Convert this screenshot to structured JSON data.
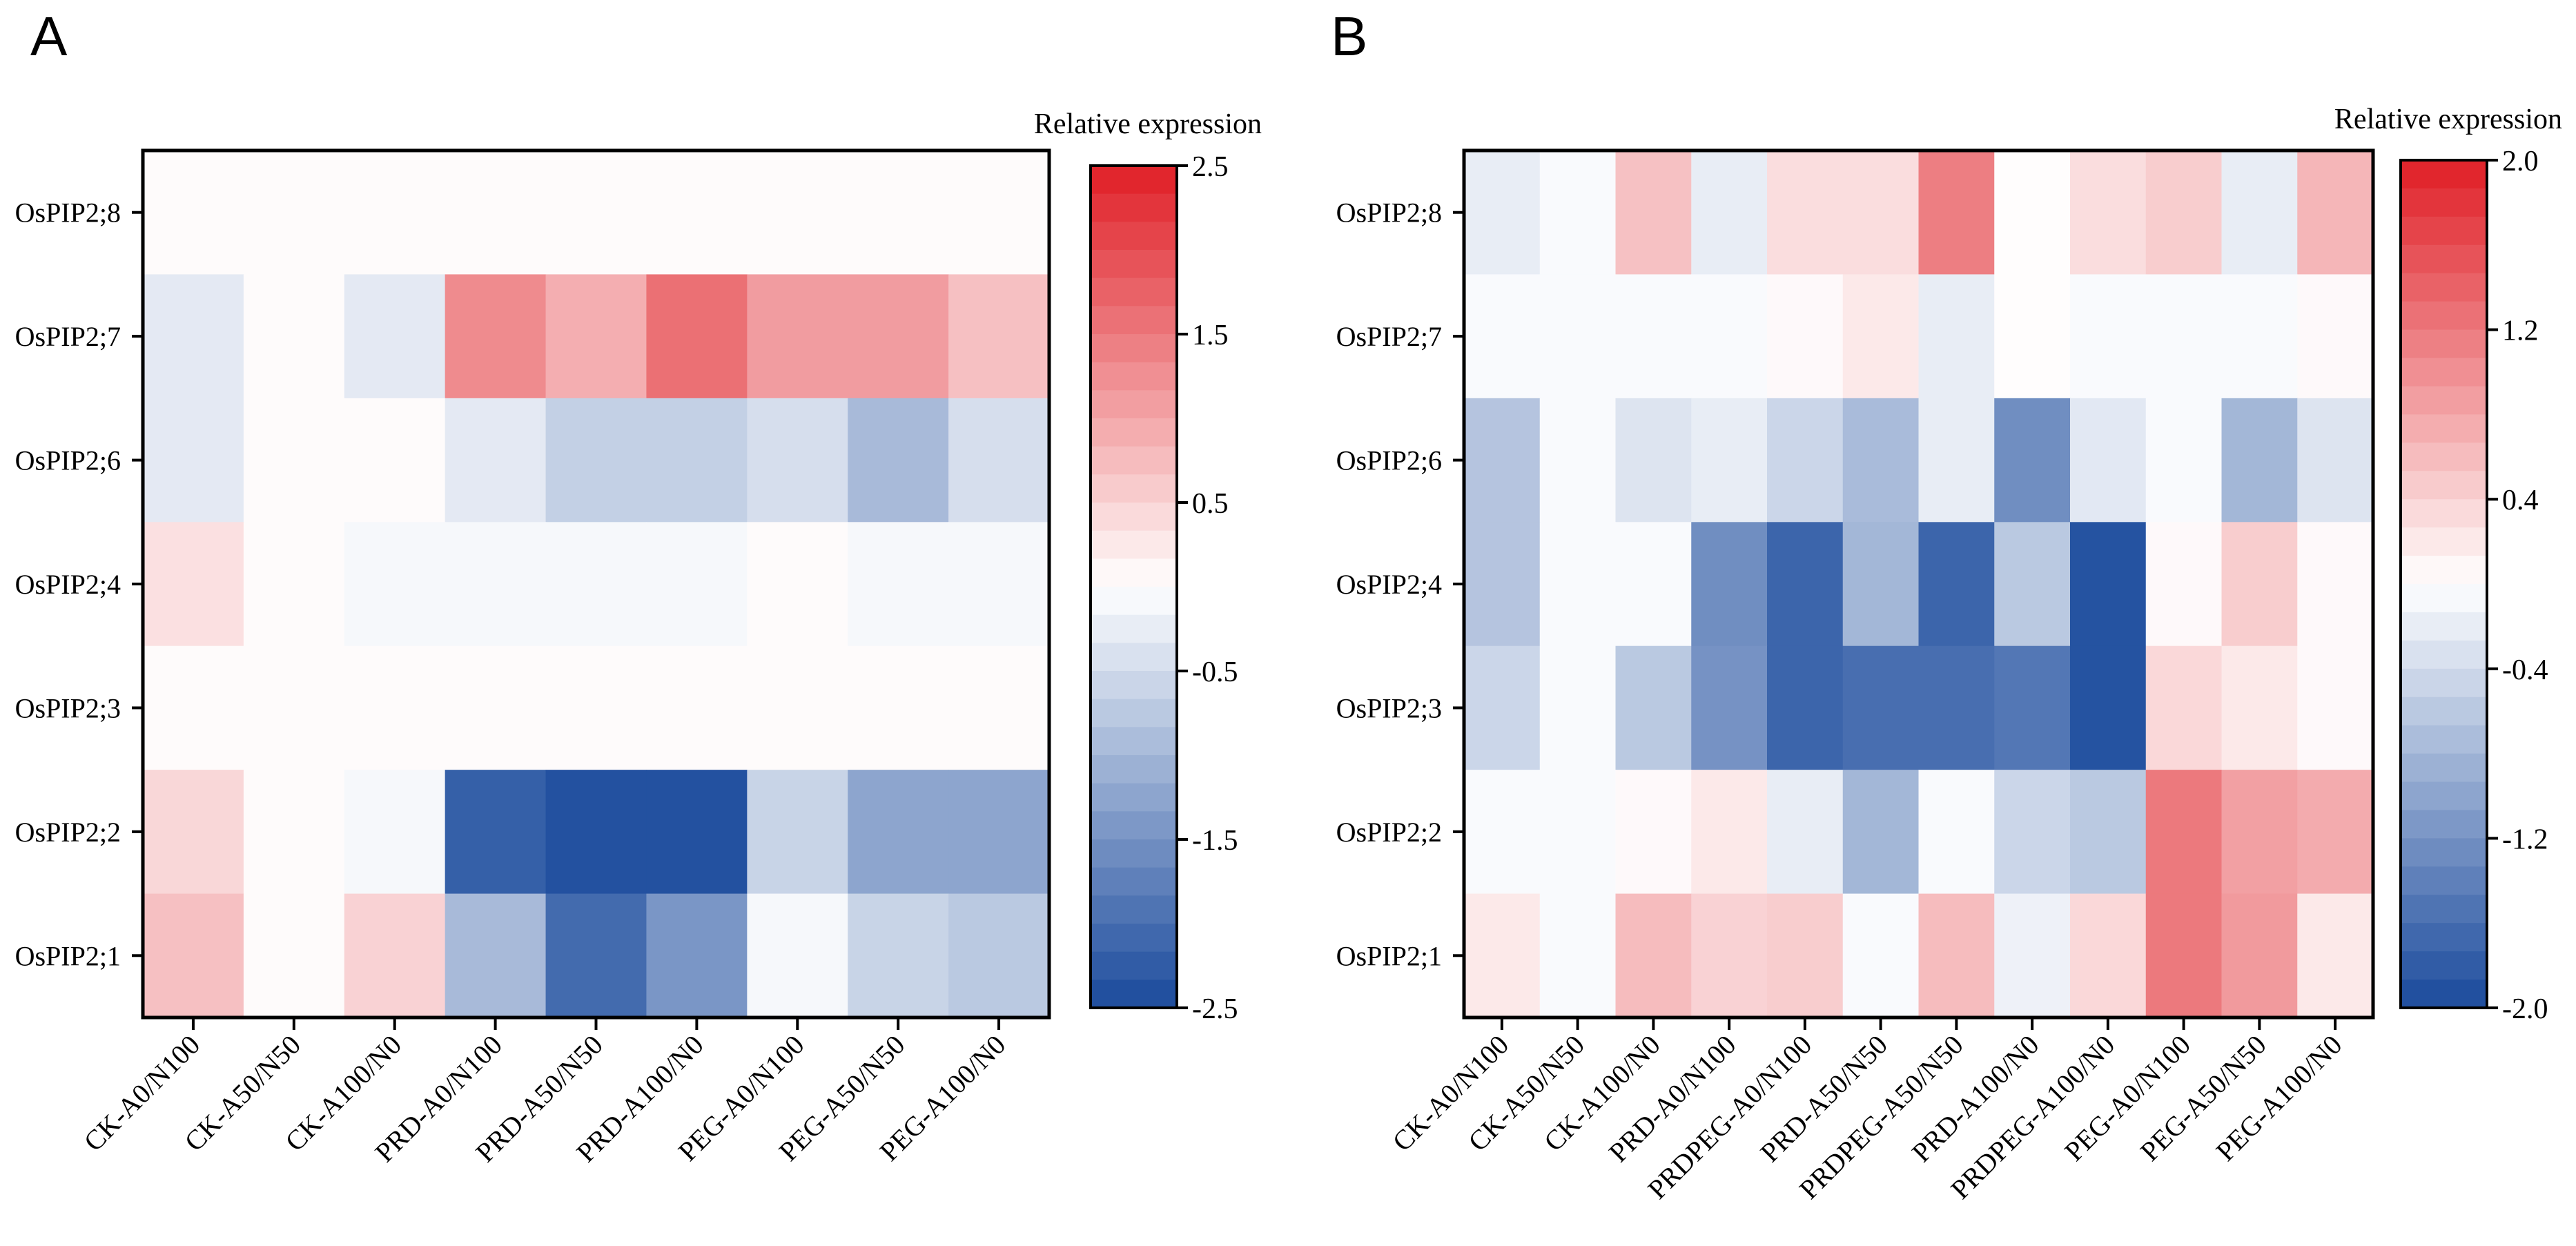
{
  "chart_data": [
    {
      "type": "heatmap",
      "panel_label": "A",
      "legend_title": "Relative expression",
      "rows": [
        "OsPIP2;8",
        "OsPIP2;7",
        "OsPIP2;6",
        "OsPIP2;4",
        "OsPIP2;3",
        "OsPIP2;2",
        "OsPIP2;1"
      ],
      "columns": [
        "CK-A0/N100",
        "CK-A50/N50",
        "CK-A100/N0",
        "PRD-A0/N100",
        "PRD-A50/N50",
        "PRD-A100/N0",
        "PEG-A0/N100",
        "PEG-A50/N50",
        "PEG-A100/N0"
      ],
      "values": [
        [
          0.05,
          0.05,
          0.05,
          0.05,
          0.05,
          0.05,
          0.05,
          0.05,
          0.05
        ],
        [
          -0.3,
          0.05,
          -0.3,
          1.3,
          0.9,
          1.6,
          1.1,
          1.1,
          0.7
        ],
        [
          -0.3,
          0.05,
          0.05,
          -0.3,
          -0.65,
          -0.65,
          -0.45,
          -0.95,
          -0.45
        ],
        [
          0.35,
          0.05,
          -0.1,
          -0.1,
          -0.1,
          -0.1,
          0.05,
          -0.1,
          -0.1
        ],
        [
          0.05,
          0.05,
          0.05,
          0.05,
          0.05,
          0.05,
          0.05,
          0.05,
          0.05
        ],
        [
          0.45,
          0.05,
          -0.1,
          -2.2,
          -2.4,
          -2.4,
          -0.6,
          -1.25,
          -1.25
        ],
        [
          0.7,
          0.05,
          0.5,
          -0.95,
          -2.05,
          -1.45,
          -0.1,
          -0.6,
          -0.75
        ]
      ],
      "color_range": [
        -2.5,
        2.5
      ],
      "color_ticks": [
        2.5,
        1.5,
        0.5,
        -0.5,
        -1.5,
        -2.5
      ],
      "color_tick_labels": [
        "2.5",
        "1.5",
        "0.5",
        "-0.5",
        "-1.5",
        "-2.5"
      ],
      "colors": {
        "low": "#1a4a9c",
        "mid": "#ffffff",
        "high": "#e01f26"
      }
    },
    {
      "type": "heatmap",
      "panel_label": "B",
      "legend_title": "Relative expression",
      "rows": [
        "OsPIP2;8",
        "OsPIP2;7",
        "OsPIP2;6",
        "OsPIP2;4",
        "OsPIP2;3",
        "OsPIP2;2",
        "OsPIP2;1"
      ],
      "columns": [
        "CK-A0/N100",
        "CK-A50/N50",
        "CK-A100/N0",
        "PRD-A0/N100",
        "PRDPEG-A0/N100",
        "PRD-A50/N50",
        "PRDPEG-A50/N50",
        "PRD-A100/N0",
        "PRDPEG-A100/N0",
        "PEG-A0/N100",
        "PEG-A50/N50",
        "PEG-A100/N0"
      ],
      "values": [
        [
          -0.2,
          -0.05,
          0.55,
          -0.2,
          0.3,
          0.3,
          1.15,
          0.02,
          0.3,
          0.45,
          -0.2,
          0.65
        ],
        [
          -0.05,
          -0.05,
          -0.05,
          -0.05,
          0.05,
          0.2,
          -0.2,
          0.02,
          -0.05,
          -0.05,
          -0.05,
          0.05
        ],
        [
          -0.65,
          -0.05,
          -0.3,
          -0.2,
          -0.45,
          -0.75,
          -0.2,
          -1.25,
          -0.25,
          -0.05,
          -0.8,
          -0.3
        ],
        [
          -0.65,
          -0.05,
          -0.05,
          -1.25,
          -1.7,
          -0.8,
          -1.7,
          -0.6,
          -1.9,
          0.05,
          0.45,
          0.05
        ],
        [
          -0.45,
          -0.05,
          -0.6,
          -1.2,
          -1.7,
          -1.6,
          -1.6,
          -1.5,
          -1.9,
          0.35,
          0.2,
          0.05
        ],
        [
          -0.05,
          -0.05,
          0.05,
          0.2,
          -0.2,
          -0.8,
          -0.05,
          -0.45,
          -0.6,
          1.2,
          0.85,
          0.75
        ],
        [
          0.2,
          -0.05,
          0.6,
          0.4,
          0.45,
          -0.05,
          0.6,
          -0.15,
          0.35,
          1.2,
          0.9,
          0.2
        ]
      ],
      "color_range": [
        -2.0,
        2.0
      ],
      "color_ticks": [
        2.0,
        1.2,
        0.4,
        -0.4,
        -1.2,
        -2.0
      ],
      "color_tick_labels": [
        "2.0",
        "1.2",
        "0.4",
        "-0.4",
        "-1.2",
        "-2.0"
      ],
      "colors": {
        "low": "#1a4a9c",
        "mid": "#ffffff",
        "high": "#e01f26"
      }
    }
  ]
}
